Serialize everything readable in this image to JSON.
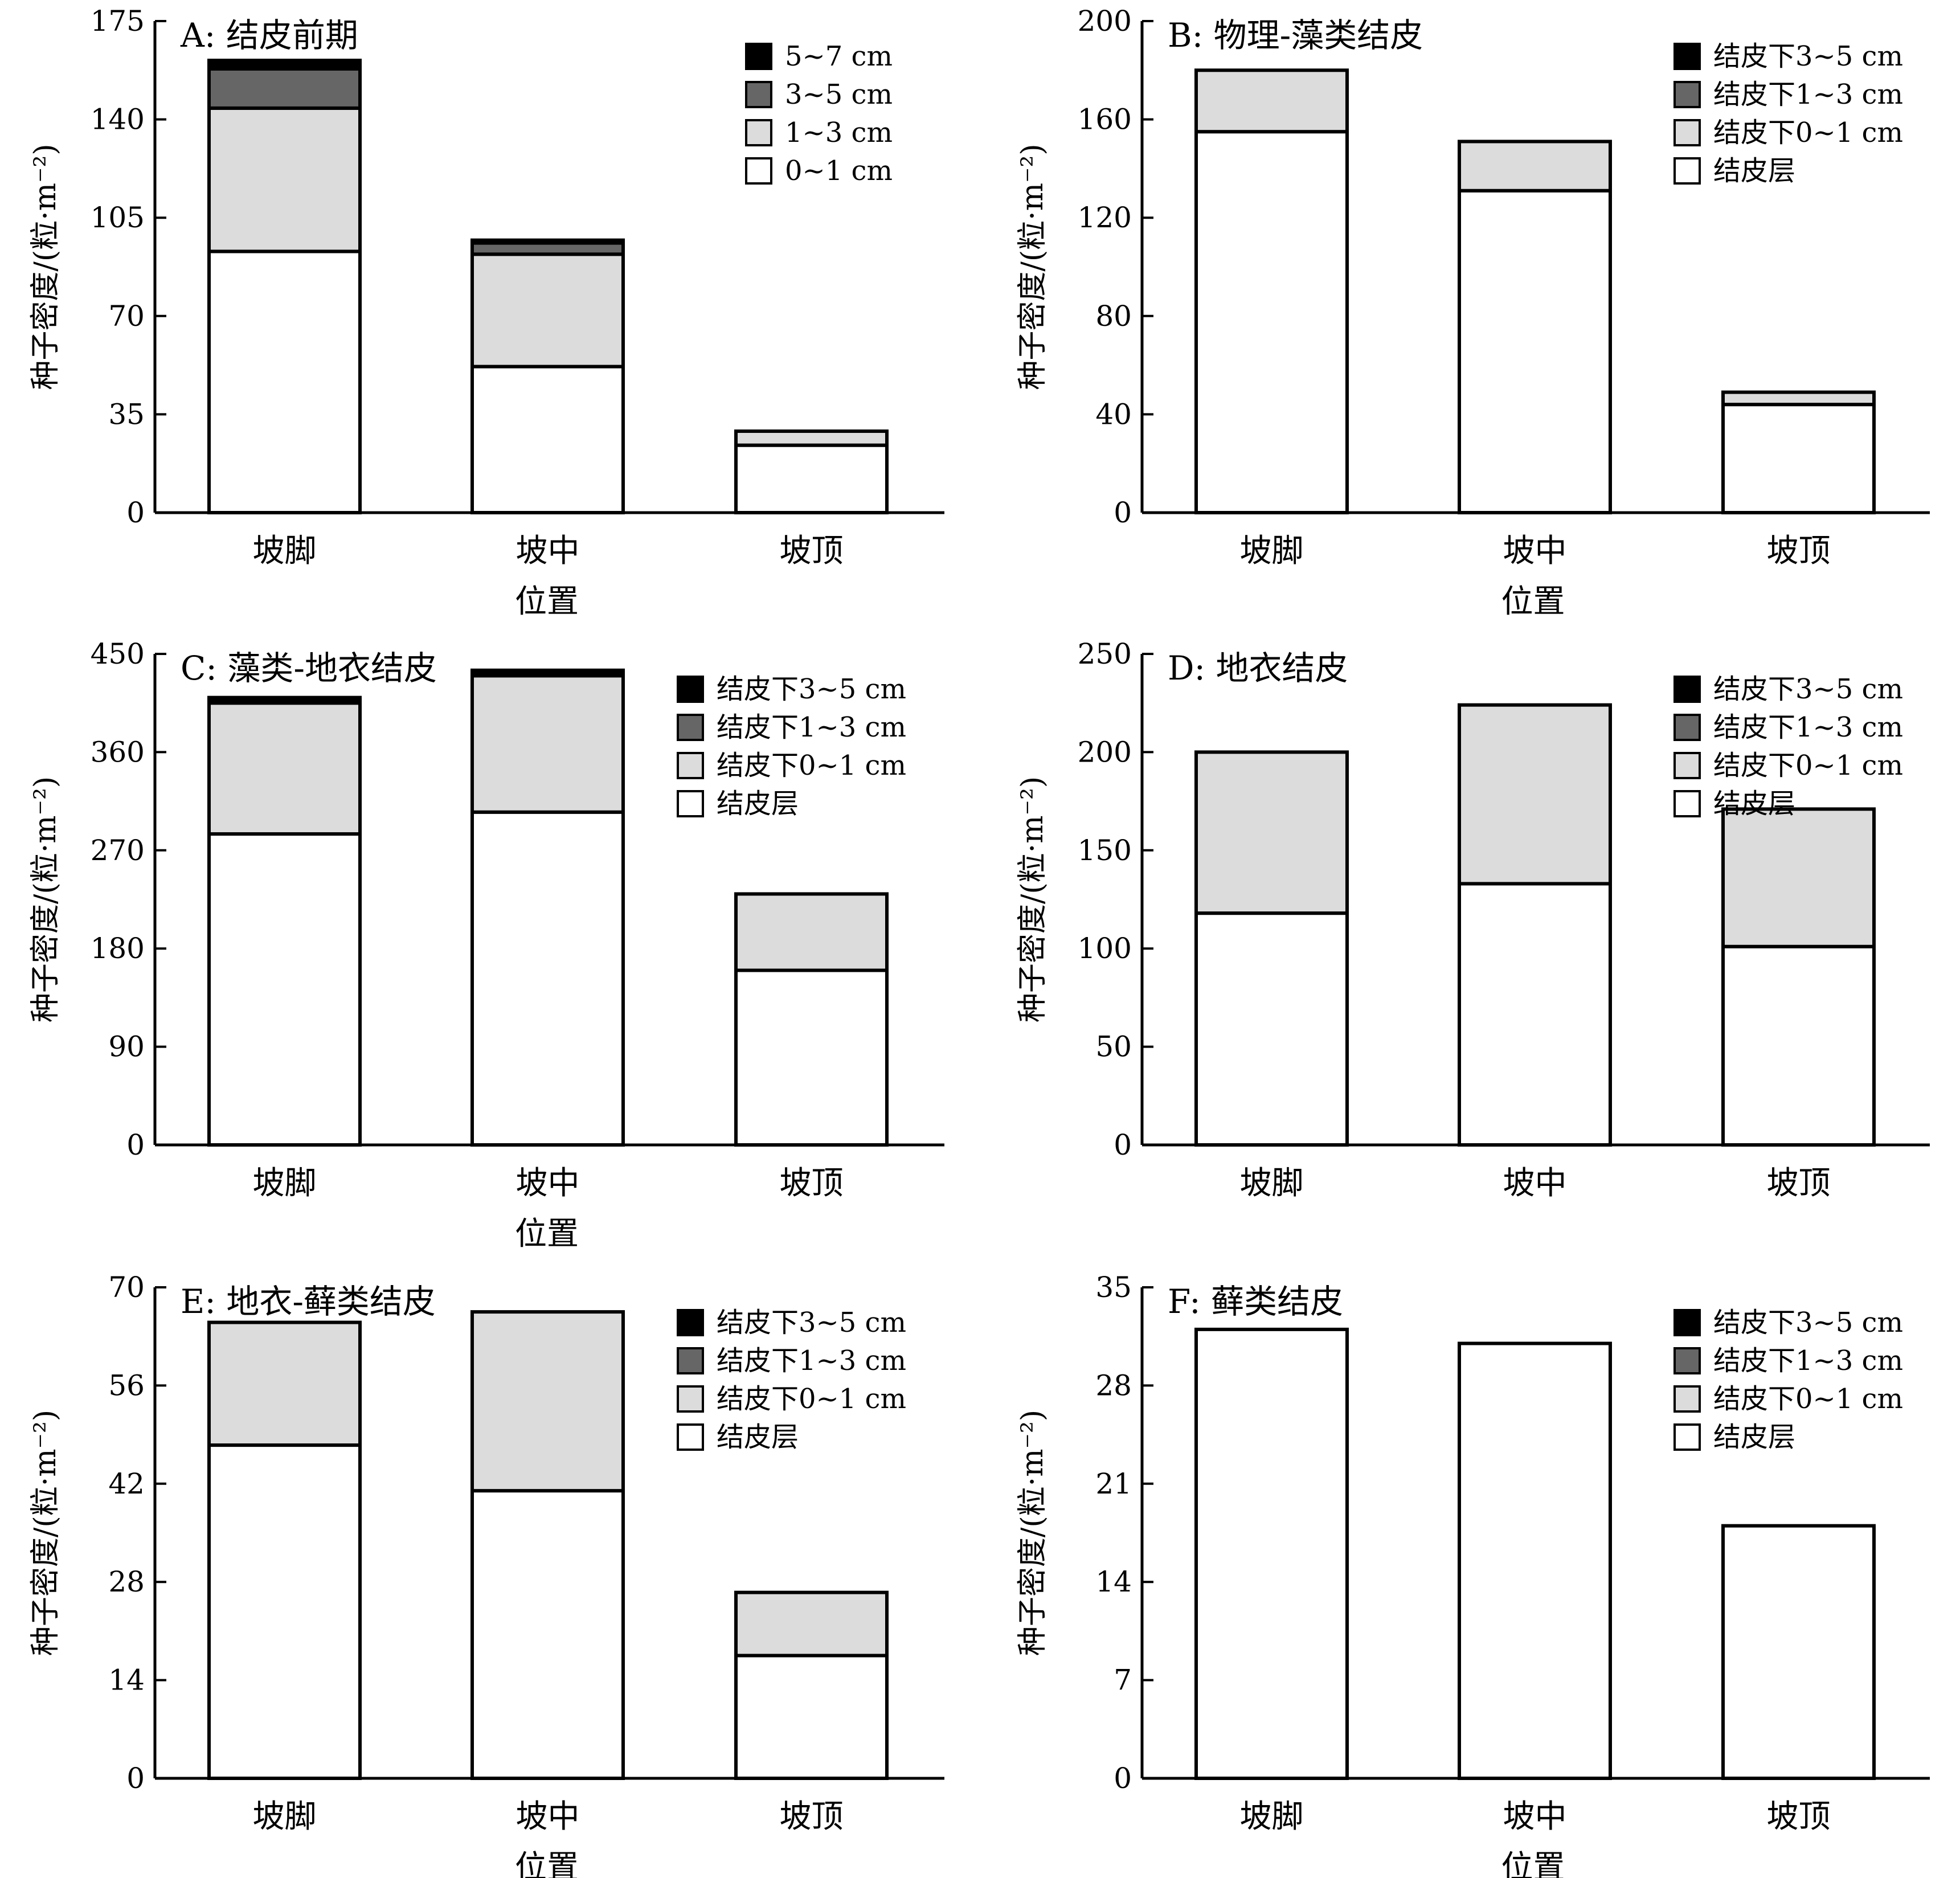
{
  "chart_data": [
    {
      "type": "bar",
      "stacked": true,
      "title": "A: 结皮前期",
      "xlabel": "位置",
      "ylabel": "种子密度/(粒·m⁻²)",
      "categories": [
        "坡脚",
        "坡中",
        "坡顶"
      ],
      "ylim": [
        0,
        175
      ],
      "yticks": [
        "0",
        "35",
        "70",
        "105",
        "140",
        "175"
      ],
      "series": [
        {
          "name": "0~1 cm",
          "color": "#ffffff",
          "values": [
            93,
            52,
            24
          ]
        },
        {
          "name": "1~3 cm",
          "color": "#dcdcdc",
          "values": [
            51,
            40,
            5
          ]
        },
        {
          "name": "3~5 cm",
          "color": "#666666",
          "values": [
            14,
            4,
            0
          ]
        },
        {
          "name": "5~7 cm",
          "color": "#000000",
          "values": [
            3,
            1,
            0
          ]
        }
      ],
      "legend": [
        "5~7 cm",
        "3~5 cm",
        "1~3 cm",
        "0~1 cm"
      ],
      "legend_position": "top-right"
    },
    {
      "type": "bar",
      "stacked": true,
      "title": "B: 物理-藻类结皮",
      "xlabel": "位置",
      "ylabel": "种子密度/(粒·m⁻²)",
      "categories": [
        "坡脚",
        "坡中",
        "坡顶"
      ],
      "ylim": [
        0,
        200
      ],
      "yticks": [
        "0",
        "40",
        "80",
        "120",
        "160",
        "200"
      ],
      "series": [
        {
          "name": "结皮层",
          "color": "#ffffff",
          "values": [
            155,
            131,
            44
          ]
        },
        {
          "name": "结皮下0~1 cm",
          "color": "#dcdcdc",
          "values": [
            25,
            20,
            5
          ]
        },
        {
          "name": "结皮下1~3 cm",
          "color": "#666666",
          "values": [
            0,
            0,
            0
          ]
        },
        {
          "name": "结皮下3~5 cm",
          "color": "#000000",
          "values": [
            0,
            0,
            0
          ]
        }
      ],
      "legend": [
        "结皮下3~5 cm",
        "结皮下1~3 cm",
        "结皮下0~1 cm",
        "结皮层"
      ],
      "legend_position": "top-right"
    },
    {
      "type": "bar",
      "stacked": true,
      "title": "C: 藻类-地衣结皮",
      "xlabel": "位置",
      "ylabel": "种子密度/(粒·m⁻²)",
      "categories": [
        "坡脚",
        "坡中",
        "坡顶"
      ],
      "ylim": [
        0,
        450
      ],
      "yticks": [
        "0",
        "90",
        "180",
        "270",
        "360",
        "450"
      ],
      "series": [
        {
          "name": "结皮层",
          "color": "#ffffff",
          "values": [
            285,
            305,
            160
          ]
        },
        {
          "name": "结皮下0~1 cm",
          "color": "#dcdcdc",
          "values": [
            120,
            125,
            70
          ]
        },
        {
          "name": "结皮下1~3 cm",
          "color": "#666666",
          "values": [
            0,
            0,
            0
          ]
        },
        {
          "name": "结皮下3~5 cm",
          "color": "#000000",
          "values": [
            5,
            5,
            0
          ]
        }
      ],
      "legend": [
        "结皮下3~5 cm",
        "结皮下1~3 cm",
        "结皮下0~1 cm",
        "结皮层"
      ],
      "legend_position": "top-right"
    },
    {
      "type": "bar",
      "stacked": true,
      "title": "D: 地衣结皮",
      "xlabel": "位置",
      "ylabel": "种子密度/(粒·m⁻²)",
      "categories": [
        "坡脚",
        "坡中",
        "坡顶"
      ],
      "ylim": [
        0,
        250
      ],
      "yticks": [
        "0",
        "50",
        "100",
        "150",
        "200",
        "250"
      ],
      "series": [
        {
          "name": "结皮层",
          "color": "#ffffff",
          "values": [
            118,
            133,
            101
          ]
        },
        {
          "name": "结皮下0~1 cm",
          "color": "#dcdcdc",
          "values": [
            82,
            91,
            70
          ]
        },
        {
          "name": "结皮下1~3 cm",
          "color": "#666666",
          "values": [
            0,
            0,
            0
          ]
        },
        {
          "name": "结皮下3~5 cm",
          "color": "#000000",
          "values": [
            0,
            0,
            0
          ]
        }
      ],
      "legend": [
        "结皮下3~5 cm",
        "结皮下1~3 cm",
        "结皮下0~1 cm",
        "结皮层"
      ],
      "legend_position": "top-right"
    },
    {
      "type": "bar",
      "stacked": true,
      "title": "E: 地衣-藓类结皮",
      "xlabel": "位置",
      "ylabel": "种子密度/(粒·m⁻²)",
      "categories": [
        "坡脚",
        "坡中",
        "坡顶"
      ],
      "ylim": [
        0,
        70
      ],
      "yticks": [
        "0",
        "14",
        "28",
        "42",
        "56",
        "70"
      ],
      "series": [
        {
          "name": "结皮层",
          "color": "#ffffff",
          "values": [
            47.5,
            41,
            17.5
          ]
        },
        {
          "name": "结皮下0~1 cm",
          "color": "#dcdcdc",
          "values": [
            17.5,
            25.5,
            9
          ]
        },
        {
          "name": "结皮下1~3 cm",
          "color": "#666666",
          "values": [
            0,
            0,
            0
          ]
        },
        {
          "name": "结皮下3~5 cm",
          "color": "#000000",
          "values": [
            0,
            0,
            0
          ]
        }
      ],
      "legend": [
        "结皮下3~5 cm",
        "结皮下1~3 cm",
        "结皮下0~1 cm",
        "结皮层"
      ],
      "legend_position": "top-right"
    },
    {
      "type": "bar",
      "stacked": true,
      "title": "F: 藓类结皮",
      "xlabel": "位置",
      "ylabel": "种子密度/(粒·m⁻²)",
      "categories": [
        "坡脚",
        "坡中",
        "坡顶"
      ],
      "ylim": [
        0,
        35
      ],
      "yticks": [
        "0",
        "7",
        "14",
        "21",
        "28",
        "35"
      ],
      "series": [
        {
          "name": "结皮层",
          "color": "#ffffff",
          "values": [
            32,
            31,
            18
          ]
        },
        {
          "name": "结皮下0~1 cm",
          "color": "#dcdcdc",
          "values": [
            0,
            0,
            0
          ]
        },
        {
          "name": "结皮下1~3 cm",
          "color": "#666666",
          "values": [
            0,
            0,
            0
          ]
        },
        {
          "name": "结皮下3~5 cm",
          "color": "#000000",
          "values": [
            0,
            0,
            0
          ]
        }
      ],
      "legend": [
        "结皮下3~5 cm",
        "结皮下1~3 cm",
        "结皮下0~1 cm",
        "结皮层"
      ],
      "legend_position": "top-right"
    }
  ]
}
